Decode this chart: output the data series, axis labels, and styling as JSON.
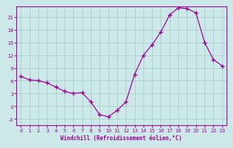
{
  "x_data": [
    0,
    1,
    2,
    3,
    4,
    5,
    6,
    7,
    8,
    9,
    10,
    11,
    12,
    13,
    14,
    15,
    16,
    17,
    18,
    19,
    20,
    21,
    22,
    23
  ],
  "y_data": [
    7.0,
    6.2,
    6.0,
    5.5,
    4.5,
    3.5,
    3.0,
    3.2,
    1.0,
    -2.0,
    -2.5,
    -1.0,
    1.0,
    7.5,
    12.0,
    14.5,
    17.5,
    21.5,
    23.2,
    23.0,
    22.0,
    15.0,
    11.0,
    9.5
  ],
  "line_color": "#990099",
  "marker": "+",
  "markersize": 4,
  "markeredgewidth": 1.0,
  "linewidth": 0.9,
  "bg_color": "#cce8e8",
  "grid_color": "#aacccc",
  "tick_color": "#990099",
  "label_color": "#990099",
  "xlabel": "Windchill (Refroidissement éolien,°C)",
  "xlim": [
    -0.5,
    23.5
  ],
  "ylim": [
    -4.5,
    23.5
  ],
  "yticks": [
    -3,
    0,
    3,
    6,
    9,
    12,
    15,
    18,
    21
  ],
  "xticks": [
    0,
    1,
    2,
    3,
    4,
    5,
    6,
    7,
    8,
    9,
    10,
    11,
    12,
    13,
    14,
    15,
    16,
    17,
    18,
    19,
    20,
    21,
    22,
    23
  ]
}
